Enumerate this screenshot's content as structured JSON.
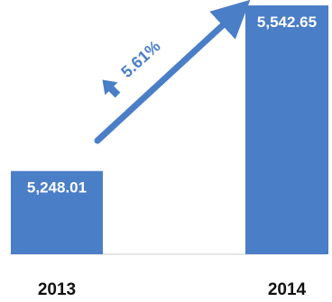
{
  "chart_data": {
    "type": "bar",
    "categories": [
      "2013",
      "2014"
    ],
    "values": [
      5248.01,
      5542.65
    ],
    "data_labels": [
      "5,248.01",
      "5,542.65"
    ],
    "annotation": "5.61%",
    "colors": {
      "bar": "#4a7ec7",
      "bar_label": "#ffffff",
      "arrow": "#4a7ec7",
      "baseline": "#e6e6e6"
    },
    "grid": false,
    "legend": "none"
  }
}
